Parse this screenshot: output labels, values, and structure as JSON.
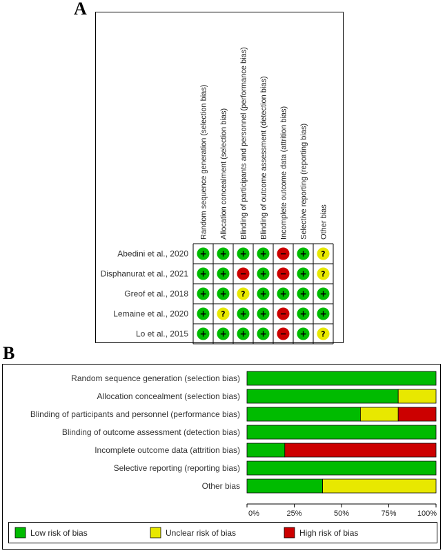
{
  "panel_labels": {
    "a": "A",
    "b": "B"
  },
  "colors": {
    "low": "#00bb00",
    "unclear": "#e8e800",
    "high": "#cc0000"
  },
  "chart_data": [
    {
      "type": "table",
      "panel": "A",
      "columns": [
        "Random sequence generation (selection bias)",
        "Allocation concealment (selection bias)",
        "Blinding of participants and personnel (performance bias)",
        "Blinding of outcome assessment (detection bias)",
        "Incomplete outcome data (attrition bias)",
        "Selective reporting (reporting bias)",
        "Other bias"
      ],
      "rows": [
        {
          "study": "Abedini et al., 2020",
          "ratings": [
            "low",
            "low",
            "low",
            "low",
            "high",
            "low",
            "unclear"
          ]
        },
        {
          "study": "Disphanurat et al., 2021",
          "ratings": [
            "low",
            "low",
            "high",
            "low",
            "high",
            "low",
            "unclear"
          ]
        },
        {
          "study": "Greof et al., 2018",
          "ratings": [
            "low",
            "low",
            "unclear",
            "low",
            "low",
            "low",
            "low"
          ]
        },
        {
          "study": "Lemaine et al., 2020",
          "ratings": [
            "low",
            "unclear",
            "low",
            "low",
            "high",
            "low",
            "low"
          ]
        },
        {
          "study": "Lo et al., 2015",
          "ratings": [
            "low",
            "low",
            "low",
            "low",
            "high",
            "low",
            "unclear"
          ]
        }
      ],
      "symbols": {
        "low": "+",
        "unclear": "?",
        "high": "−"
      }
    },
    {
      "type": "bar",
      "panel": "B",
      "orientation": "horizontal",
      "stacked": true,
      "categories": [
        "Random sequence generation (selection bias)",
        "Allocation concealment (selection bias)",
        "Blinding of participants and personnel (performance bias)",
        "Blinding of outcome assessment (detection bias)",
        "Incomplete outcome data (attrition bias)",
        "Selective reporting (reporting bias)",
        "Other bias"
      ],
      "series": [
        {
          "name": "Low risk of bias",
          "key": "low",
          "values": [
            100,
            80,
            60,
            100,
            20,
            100,
            40
          ]
        },
        {
          "name": "Unclear risk of bias",
          "key": "unclear",
          "values": [
            0,
            20,
            20,
            0,
            0,
            0,
            60
          ]
        },
        {
          "name": "High risk of bias",
          "key": "high",
          "values": [
            0,
            0,
            20,
            0,
            80,
            0,
            0
          ]
        }
      ],
      "xlim": [
        0,
        100
      ],
      "xticks": [
        "0%",
        "25%",
        "50%",
        "75%",
        "100%"
      ],
      "legend_position": "bottom"
    }
  ]
}
